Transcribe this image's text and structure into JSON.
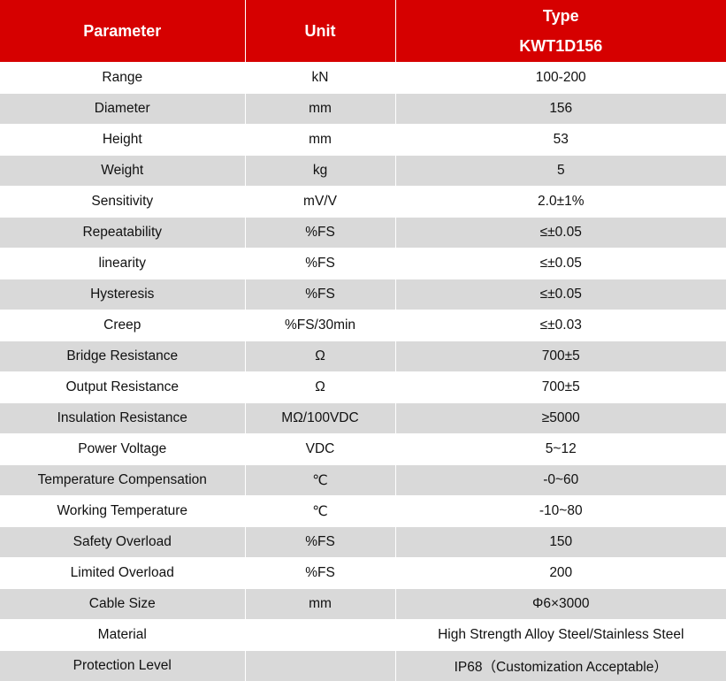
{
  "header": {
    "parameter": "Parameter",
    "unit": "Unit",
    "type_label": "Type",
    "type_model": "KWT1D156"
  },
  "rows": [
    {
      "parameter": "Range",
      "unit": "kN",
      "value": "100-200"
    },
    {
      "parameter": "Diameter",
      "unit": "mm",
      "value": "156"
    },
    {
      "parameter": "Height",
      "unit": "mm",
      "value": "53"
    },
    {
      "parameter": "Weight",
      "unit": "kg",
      "value": "5"
    },
    {
      "parameter": "Sensitivity",
      "unit": "mV/V",
      "value": "2.0±1%"
    },
    {
      "parameter": "Repeatability",
      "unit": "%FS",
      "value": "≤±0.05"
    },
    {
      "parameter": "linearity",
      "unit": "%FS",
      "value": "≤±0.05"
    },
    {
      "parameter": "Hysteresis",
      "unit": "%FS",
      "value": "≤±0.05"
    },
    {
      "parameter": "Creep",
      "unit": "%FS/30min",
      "value": "≤±0.03"
    },
    {
      "parameter": "Bridge Resistance",
      "unit": "Ω",
      "value": "700±5"
    },
    {
      "parameter": "Output Resistance",
      "unit": "Ω",
      "value": "700±5"
    },
    {
      "parameter": "Insulation Resistance",
      "unit": "MΩ/100VDC",
      "value": "≥5000"
    },
    {
      "parameter": "Power Voltage",
      "unit": "VDC",
      "value": "5~12"
    },
    {
      "parameter": "Temperature Compensation",
      "unit": "℃",
      "value": "-0~60"
    },
    {
      "parameter": "Working Temperature",
      "unit": "℃",
      "value": "-10~80"
    },
    {
      "parameter": "Safety Overload",
      "unit": "%FS",
      "value": "150"
    },
    {
      "parameter": "Limited Overload",
      "unit": "%FS",
      "value": "200"
    },
    {
      "parameter": "Cable Size",
      "unit": "mm",
      "value": "Φ6×3000"
    },
    {
      "parameter": "Material",
      "unit": "",
      "value": "High Strength Alloy Steel/Stainless Steel"
    },
    {
      "parameter": "Protection Level",
      "unit": "",
      "value": "IP68（Customization Acceptable）"
    }
  ],
  "colors": {
    "header_bg": "#d60000",
    "header_text": "#ffffff",
    "row_alt_bg": "#d9d9d9",
    "row_bg": "#ffffff",
    "text": "#111111"
  }
}
